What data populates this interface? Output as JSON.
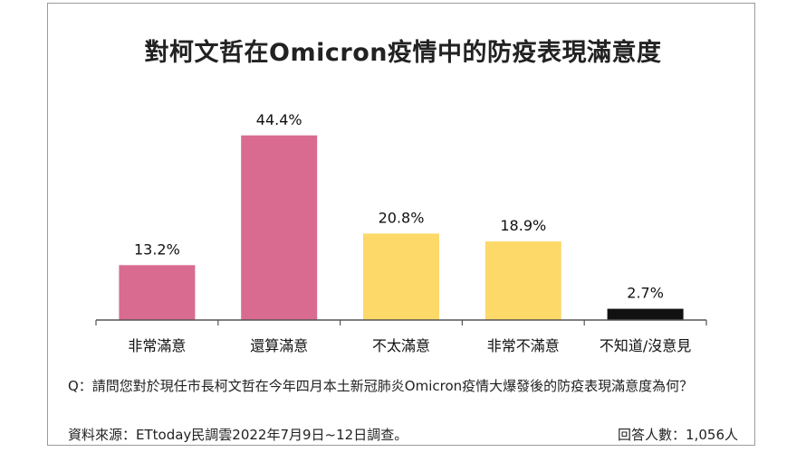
{
  "chart_data": {
    "type": "bar",
    "title": "對柯文哲在Omicron疫情中的防疫表現滿意度",
    "categories": [
      "非常滿意",
      "還算滿意",
      "不太滿意",
      "非常不滿意",
      "不知道/沒意見"
    ],
    "values": [
      13.2,
      44.4,
      20.8,
      18.9,
      2.7
    ],
    "value_labels": [
      "13.2%",
      "44.4%",
      "20.8%",
      "18.9%",
      "2.7%"
    ],
    "colors": [
      "#d96b91",
      "#d96b91",
      "#fdd96a",
      "#fdd96a",
      "#111111"
    ],
    "ylim": [
      0,
      50
    ],
    "grid": false,
    "legend": "none"
  },
  "footer": {
    "question": "Q：請問您對於現任市長柯文哲在今年四月本土新冠肺炎Omicron疫情大爆發後的防疫表現滿意度為何？",
    "source": "資料來源：ETtoday民調雲2022年7月9日~12日調查。",
    "respondents": "回答人數：1,056人"
  }
}
